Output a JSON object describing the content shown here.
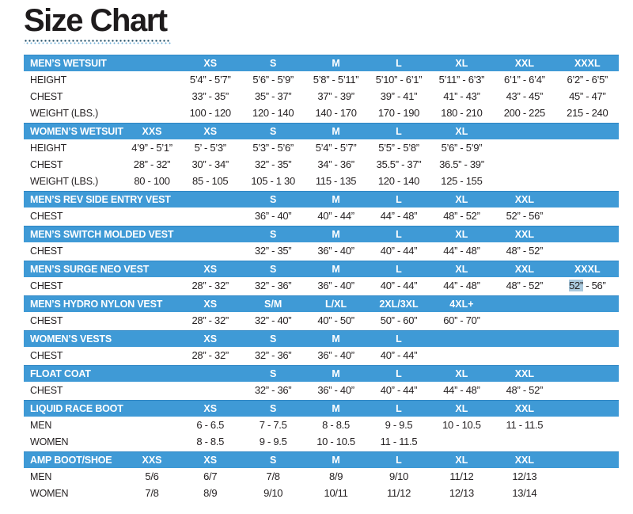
{
  "page": {
    "title": "Size Chart"
  },
  "colors": {
    "header_bar_blue": "#3f9ad6",
    "header_bar_edge": "#2e86c4",
    "selection_highlight": "#aac9dd",
    "underline_dot_dark": "#16455f",
    "underline_dot_light": "#6fb0d8",
    "title_text": "#1e1b1c"
  },
  "tables": [
    {
      "title": "MEN’S WETSUIT",
      "sizes": [
        "",
        "XS",
        "S",
        "M",
        "L",
        "XL",
        "XXL",
        "XXXL"
      ],
      "rows": [
        {
          "label": "HEIGHT",
          "values": [
            "",
            "5’4” - 5’7”",
            "5’6” - 5’9”",
            "5’8” - 5’11”",
            "5’10” - 6’1”",
            "5’11” - 6’3”",
            "6’1” - 6’4”",
            "6’2” - 6’5”"
          ]
        },
        {
          "label": "CHEST",
          "values": [
            "",
            "33” - 35”",
            "35” - 37”",
            "37” - 39”",
            "39” - 41”",
            "41” - 43”",
            "43” - 45”",
            "45” - 47”"
          ]
        },
        {
          "label": "WEIGHT (LBS.)",
          "values": [
            "",
            "100 - 120",
            "120 - 140",
            "140 - 170",
            "170 - 190",
            "180 - 210",
            "200 - 225",
            "215 - 240"
          ]
        }
      ]
    },
    {
      "title": "WOMEN’S WETSUIT",
      "sizes": [
        "XXS",
        "XS",
        "S",
        "M",
        "L",
        "XL",
        "",
        ""
      ],
      "rows": [
        {
          "label": "HEIGHT",
          "values": [
            "4’9” - 5’1”",
            "5’ - 5’3”",
            "5’3” - 5’6”",
            "5’4” - 5’7”",
            "5’5” - 5’8”",
            "5’6” - 5’9”",
            "",
            ""
          ]
        },
        {
          "label": "CHEST",
          "values": [
            "28” - 32”",
            "30” - 34”",
            "32” - 35”",
            "34” - 36”",
            "35.5” - 37”",
            "36.5” - 39”",
            "",
            ""
          ]
        },
        {
          "label": "WEIGHT (LBS.)",
          "values": [
            "80 - 100",
            "85 - 105",
            "105 - 1 30",
            "115 - 135",
            "120 - 140",
            "125 - 155",
            "",
            ""
          ]
        }
      ]
    },
    {
      "title": "MEN’S REV SIDE ENTRY VEST",
      "sizes": [
        "",
        "",
        "S",
        "M",
        "L",
        "XL",
        "XXL",
        ""
      ],
      "rows": [
        {
          "label": "CHEST",
          "values": [
            "",
            "",
            "36” - 40”",
            "40” - 44”",
            "44” - 48”",
            "48” - 52”",
            "52” - 56”",
            ""
          ]
        }
      ]
    },
    {
      "title": "MEN’S SWITCH MOLDED VEST",
      "sizes": [
        "",
        "",
        "S",
        "M",
        "L",
        "XL",
        "XXL",
        ""
      ],
      "rows": [
        {
          "label": "CHEST",
          "values": [
            "",
            "",
            "32” - 35”",
            "36” - 40”",
            "40” - 44”",
            "44” - 48”",
            "48” - 52”",
            ""
          ]
        }
      ]
    },
    {
      "title": "MEN’S SURGE NEO VEST",
      "sizes": [
        "",
        "XS",
        "S",
        "M",
        "L",
        "XL",
        "XXL",
        "XXXL"
      ],
      "rows": [
        {
          "label": "CHEST",
          "values": [
            "",
            "28” - 32”",
            "32” - 36”",
            "36” - 40”",
            "40” - 44”",
            "44” - 48”",
            "48” - 52”",
            {
              "parts": [
                {
                  "text": "52”",
                  "highlighted": true
                },
                {
                  "text": " - 56”",
                  "highlighted": false
                }
              ]
            }
          ]
        }
      ]
    },
    {
      "title": "MEN’S HYDRO NYLON VEST",
      "sizes": [
        "",
        "XS",
        "S/M",
        "L/XL",
        "2XL/3XL",
        "4XL+",
        "",
        ""
      ],
      "rows": [
        {
          "label": "CHEST",
          "values": [
            "",
            "28” - 32”",
            "32” - 40”",
            "40” - 50”",
            "50” - 60”",
            "60” - 70”",
            "",
            ""
          ]
        }
      ]
    },
    {
      "title": "WOMEN’S VESTS",
      "sizes": [
        "",
        "XS",
        "S",
        "M",
        "L",
        "",
        "",
        ""
      ],
      "rows": [
        {
          "label": "CHEST",
          "values": [
            "",
            "28” - 32”",
            "32” - 36”",
            "36” - 40”",
            "40” - 44”",
            "",
            "",
            ""
          ]
        }
      ]
    },
    {
      "title": "FLOAT COAT",
      "sizes": [
        "",
        "",
        "S",
        "M",
        "L",
        "XL",
        "XXL",
        ""
      ],
      "rows": [
        {
          "label": "CHEST",
          "values": [
            "",
            "",
            "32” - 36”",
            "36” - 40”",
            "40” - 44”",
            "44” - 48”",
            "48” - 52”",
            ""
          ]
        }
      ]
    },
    {
      "title": "LIQUID RACE BOOT",
      "sizes": [
        "",
        "XS",
        "S",
        "M",
        "L",
        "XL",
        "XXL",
        ""
      ],
      "rows": [
        {
          "label": "MEN",
          "values": [
            "",
            "6 - 6.5",
            "7 - 7.5",
            "8 - 8.5",
            "9 - 9.5",
            "10 - 10.5",
            "11 - 11.5",
            ""
          ]
        },
        {
          "label": "WOMEN",
          "values": [
            "",
            "8 - 8.5",
            "9 - 9.5",
            "10 - 10.5",
            "11 - 11.5",
            "",
            "",
            ""
          ]
        }
      ]
    },
    {
      "title": "AMP BOOT/SHOE",
      "sizes": [
        "XXS",
        "XS",
        "S",
        "M",
        "L",
        "XL",
        "XXL",
        ""
      ],
      "rows": [
        {
          "label": "MEN",
          "values": [
            "5/6",
            "6/7",
            "7/8",
            "8/9",
            "9/10",
            "11/12",
            "12/13",
            ""
          ]
        },
        {
          "label": "WOMEN",
          "values": [
            "7/8",
            "8/9",
            "9/10",
            "10/11",
            "11/12",
            "12/13",
            "13/14",
            ""
          ]
        }
      ]
    }
  ]
}
